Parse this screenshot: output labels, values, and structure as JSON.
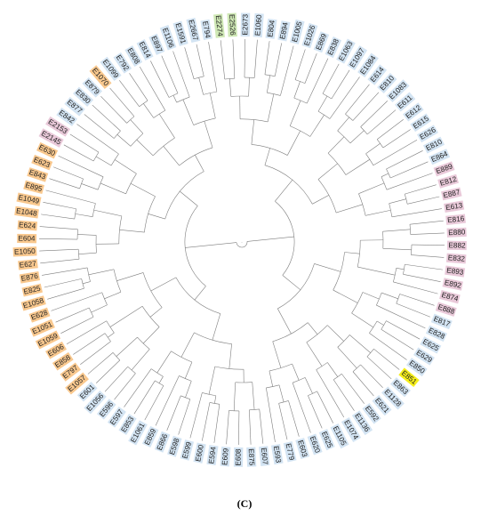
{
  "figure": {
    "panel_label": "(C)"
  },
  "groups": {
    "blue": "#d3e4f3",
    "orange": "#f9c88e",
    "pink": "#e9c9d9",
    "green": "#cfe8b5",
    "yellow": "#f5ee1a"
  },
  "leaves": [
    {
      "label": "E2274",
      "group": "green"
    },
    {
      "label": "E2526",
      "group": "green"
    },
    {
      "label": "E2673",
      "group": "blue"
    },
    {
      "label": "E1060",
      "group": "blue"
    },
    {
      "label": "E804",
      "group": "blue"
    },
    {
      "label": "E894",
      "group": "blue"
    },
    {
      "label": "E1005",
      "group": "blue"
    },
    {
      "label": "E1026",
      "group": "blue"
    },
    {
      "label": "E869",
      "group": "blue"
    },
    {
      "label": "E838",
      "group": "blue"
    },
    {
      "label": "E1063",
      "group": "blue"
    },
    {
      "label": "E1097",
      "group": "blue"
    },
    {
      "label": "E1084",
      "group": "blue"
    },
    {
      "label": "E614",
      "group": "blue"
    },
    {
      "label": "E810",
      "group": "blue"
    },
    {
      "label": "E1083",
      "group": "blue"
    },
    {
      "label": "E611",
      "group": "blue"
    },
    {
      "label": "E612",
      "group": "blue"
    },
    {
      "label": "E615",
      "group": "blue"
    },
    {
      "label": "E626",
      "group": "blue"
    },
    {
      "label": "E810",
      "group": "blue"
    },
    {
      "label": "E864",
      "group": "blue"
    },
    {
      "label": "E889",
      "group": "pink"
    },
    {
      "label": "E812",
      "group": "pink"
    },
    {
      "label": "E887",
      "group": "pink"
    },
    {
      "label": "E613",
      "group": "pink"
    },
    {
      "label": "E816",
      "group": "pink"
    },
    {
      "label": "E880",
      "group": "pink"
    },
    {
      "label": "E882",
      "group": "pink"
    },
    {
      "label": "E832",
      "group": "pink"
    },
    {
      "label": "E893",
      "group": "pink"
    },
    {
      "label": "E892",
      "group": "pink"
    },
    {
      "label": "E874",
      "group": "pink"
    },
    {
      "label": "E888",
      "group": "pink"
    },
    {
      "label": "E817",
      "group": "blue"
    },
    {
      "label": "E828",
      "group": "blue"
    },
    {
      "label": "E625",
      "group": "blue"
    },
    {
      "label": "E629",
      "group": "blue"
    },
    {
      "label": "E850",
      "group": "blue"
    },
    {
      "label": "E851",
      "group": "yellow"
    },
    {
      "label": "E863",
      "group": "blue"
    },
    {
      "label": "E1128",
      "group": "blue"
    },
    {
      "label": "E621",
      "group": "blue"
    },
    {
      "label": "E592",
      "group": "blue"
    },
    {
      "label": "E1136",
      "group": "blue"
    },
    {
      "label": "E1074",
      "group": "blue"
    },
    {
      "label": "E1105",
      "group": "blue"
    },
    {
      "label": "E625",
      "group": "blue"
    },
    {
      "label": "E620",
      "group": "blue"
    },
    {
      "label": "E603",
      "group": "blue"
    },
    {
      "label": "E779",
      "group": "blue"
    },
    {
      "label": "E593",
      "group": "blue"
    },
    {
      "label": "E607",
      "group": "blue"
    },
    {
      "label": "E875",
      "group": "blue"
    },
    {
      "label": "E608",
      "group": "blue"
    },
    {
      "label": "E609",
      "group": "blue"
    },
    {
      "label": "E594",
      "group": "blue"
    },
    {
      "label": "E600",
      "group": "blue"
    },
    {
      "label": "E599",
      "group": "blue"
    },
    {
      "label": "E598",
      "group": "blue"
    },
    {
      "label": "E866",
      "group": "blue"
    },
    {
      "label": "E859",
      "group": "blue"
    },
    {
      "label": "E1061",
      "group": "blue"
    },
    {
      "label": "E853",
      "group": "blue"
    },
    {
      "label": "E597",
      "group": "blue"
    },
    {
      "label": "E596",
      "group": "blue"
    },
    {
      "label": "E1056",
      "group": "blue"
    },
    {
      "label": "E601",
      "group": "blue"
    },
    {
      "label": "E1057",
      "group": "orange"
    },
    {
      "label": "E797",
      "group": "orange"
    },
    {
      "label": "E858",
      "group": "orange"
    },
    {
      "label": "E606",
      "group": "orange"
    },
    {
      "label": "E1059",
      "group": "orange"
    },
    {
      "label": "E1051",
      "group": "orange"
    },
    {
      "label": "E628",
      "group": "orange"
    },
    {
      "label": "E1058",
      "group": "orange"
    },
    {
      "label": "E825",
      "group": "orange"
    },
    {
      "label": "E876",
      "group": "orange"
    },
    {
      "label": "E627",
      "group": "orange"
    },
    {
      "label": "E1050",
      "group": "orange"
    },
    {
      "label": "E604",
      "group": "orange"
    },
    {
      "label": "E624",
      "group": "orange"
    },
    {
      "label": "E1048",
      "group": "orange"
    },
    {
      "label": "E1049",
      "group": "orange"
    },
    {
      "label": "E895",
      "group": "orange"
    },
    {
      "label": "E843",
      "group": "orange"
    },
    {
      "label": "E623",
      "group": "orange"
    },
    {
      "label": "E630",
      "group": "orange"
    },
    {
      "label": "E2145",
      "group": "pink"
    },
    {
      "label": "E2153",
      "group": "pink"
    },
    {
      "label": "E842",
      "group": "blue"
    },
    {
      "label": "E877",
      "group": "blue"
    },
    {
      "label": "E830",
      "group": "blue"
    },
    {
      "label": "E879",
      "group": "blue"
    },
    {
      "label": "E1070",
      "group": "orange"
    },
    {
      "label": "E1099",
      "group": "blue"
    },
    {
      "label": "E792",
      "group": "blue"
    },
    {
      "label": "E808",
      "group": "blue"
    },
    {
      "label": "E814",
      "group": "blue"
    },
    {
      "label": "E897",
      "group": "blue"
    },
    {
      "label": "E1106",
      "group": "blue"
    },
    {
      "label": "E1591",
      "group": "blue"
    },
    {
      "label": "E2667",
      "group": "blue"
    },
    {
      "label": "E794",
      "group": "blue"
    }
  ]
}
